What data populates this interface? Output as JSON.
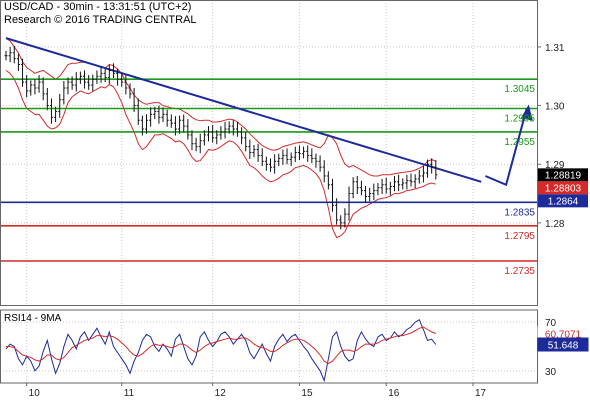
{
  "header": {
    "title": "USD/CAD - 30min - 13:31:51 (UTC+2)",
    "source": "Research © 2016 TRADING CENTRAL"
  },
  "chart_data": [
    {
      "type": "candlestick",
      "title": "USD/CAD - 30min - 13:31:51 (UTC+2)",
      "ylim": [
        1.266,
        1.318
      ],
      "y_ticks": [
        {
          "value": 1.31,
          "label": "1.31"
        },
        {
          "value": 1.3,
          "label": "1.30"
        },
        {
          "value": 1.29,
          "label": "1.29"
        },
        {
          "value": 1.28,
          "label": "1.28"
        }
      ],
      "x_ticks": [
        "10",
        "11",
        "12",
        "15",
        "16",
        "17"
      ],
      "price_labels": [
        {
          "value": 1.28819,
          "label": "1.28819",
          "color": "#ffffff",
          "bg": "#000000"
        },
        {
          "value": 1.28803,
          "label": "1.28803",
          "color": "#ffffff",
          "bg": "#d42a2a"
        },
        {
          "value": 1.2864,
          "label": "1.2864",
          "color": "#ffffff",
          "bg": "#1d2b9a"
        }
      ],
      "levels": [
        {
          "value": 1.3045,
          "label": "1.3045",
          "color": "#1a9a1a",
          "label_color": "#1a9a1a"
        },
        {
          "value": 1.2995,
          "label": "1.2995",
          "color": "#1a9a1a",
          "label_color": "#1a9a1a"
        },
        {
          "value": 1.2955,
          "label": "1.2955",
          "color": "#1a9a1a",
          "label_color": "#1a9a1a"
        },
        {
          "value": 1.2835,
          "label": "1.2835",
          "color": "#1d2b9a",
          "label_color": "#1d2b9a"
        },
        {
          "value": 1.2795,
          "label": "1.2795",
          "color": "#d42a2a",
          "label_color": "#d42a2a"
        },
        {
          "value": 1.2735,
          "label": "1.2735",
          "color": "#d42a2a",
          "label_color": "#d42a2a"
        }
      ],
      "trendline": {
        "from": {
          "bar": 0,
          "price": 1.3115
        },
        "to": {
          "bar": 115,
          "price": 1.287
        },
        "color": "#1d2b9a"
      },
      "projection": {
        "points": [
          [
            116,
            1.288
          ],
          [
            121,
            1.2865
          ],
          [
            126,
            1.2995
          ]
        ],
        "color": "#1d2b9a"
      },
      "ohlc_close": [
        1.3085,
        1.309,
        1.308,
        1.307,
        1.304,
        1.3025,
        1.3035,
        1.303,
        1.304,
        1.302,
        1.3,
        1.298,
        1.299,
        1.301,
        1.303,
        1.304,
        1.3035,
        1.3045,
        1.305,
        1.304,
        1.3035,
        1.3045,
        1.305,
        1.3055,
        1.3048,
        1.306,
        1.3055,
        1.3045,
        1.304,
        1.303,
        1.302,
        1.3,
        1.2975,
        1.296,
        1.2975,
        1.2985,
        1.299,
        1.298,
        1.2985,
        1.2975,
        1.297,
        1.296,
        1.2975,
        1.2965,
        1.295,
        1.2935,
        1.293,
        1.294,
        1.295,
        1.2955,
        1.2945,
        1.295,
        1.2955,
        1.296,
        1.2965,
        1.296,
        1.2955,
        1.2945,
        1.293,
        1.292,
        1.2925,
        1.2915,
        1.2905,
        1.29,
        1.2895,
        1.2905,
        1.291,
        1.2915,
        1.2908,
        1.2912,
        1.292,
        1.2918,
        1.2922,
        1.2915,
        1.291,
        1.2905,
        1.2895,
        1.288,
        1.2865,
        1.283,
        1.2805,
        1.28,
        1.2815,
        1.285,
        1.287,
        1.286,
        1.2855,
        1.2845,
        1.285,
        1.2855,
        1.286,
        1.2865,
        1.2858,
        1.2862,
        1.287,
        1.2865,
        1.2868,
        1.2872,
        1.287,
        1.2875,
        1.288,
        1.2885,
        1.29,
        1.2895,
        1.28819
      ],
      "band_upper": [
        1.3115,
        1.311,
        1.31,
        1.309,
        1.3075,
        1.3065,
        1.306,
        1.3055,
        1.3058,
        1.306,
        1.3055,
        1.305,
        1.3045,
        1.305,
        1.306,
        1.307,
        1.3072,
        1.3072,
        1.3074,
        1.3074,
        1.3072,
        1.307,
        1.3068,
        1.3066,
        1.3064,
        1.307,
        1.3068,
        1.3062,
        1.3055,
        1.304,
        1.303,
        1.3018,
        1.301,
        1.3005,
        1.3002,
        1.3004,
        1.3005,
        1.3005,
        1.3,
        1.2998,
        1.2996,
        1.2995,
        1.2994,
        1.299,
        1.2986,
        1.298,
        1.2976,
        1.2974,
        1.2975,
        1.2975,
        1.2972,
        1.2972,
        1.2973,
        1.2975,
        1.2977,
        1.2976,
        1.2972,
        1.2966,
        1.296,
        1.2952,
        1.2945,
        1.2938,
        1.2932,
        1.2928,
        1.2925,
        1.2924,
        1.2926,
        1.293,
        1.2932,
        1.2934,
        1.2936,
        1.2937,
        1.2938,
        1.2936,
        1.2933,
        1.293,
        1.2928,
        1.2935,
        1.295,
        1.2945,
        1.2935,
        1.2915,
        1.29,
        1.2895,
        1.2898,
        1.2894,
        1.289,
        1.2886,
        1.2882,
        1.288,
        1.288,
        1.2882,
        1.2882,
        1.2882,
        1.2884,
        1.2885,
        1.2886,
        1.2887,
        1.2888,
        1.289,
        1.2893,
        1.2897,
        1.2905,
        1.2908,
        1.2905
      ],
      "band_lower": [
        1.306,
        1.3055,
        1.3045,
        1.303,
        1.301,
        1.2995,
        1.299,
        1.2985,
        1.2985,
        1.2975,
        1.2965,
        1.296,
        1.2962,
        1.2968,
        1.2985,
        1.3005,
        1.3015,
        1.302,
        1.3025,
        1.3022,
        1.302,
        1.3024,
        1.3028,
        1.3032,
        1.303,
        1.3036,
        1.3032,
        1.302,
        1.3005,
        1.2985,
        1.297,
        1.2955,
        1.2935,
        1.2925,
        1.293,
        1.294,
        1.295,
        1.295,
        1.2952,
        1.2948,
        1.2944,
        1.2938,
        1.294,
        1.2935,
        1.2925,
        1.2912,
        1.2905,
        1.2906,
        1.2915,
        1.2925,
        1.2924,
        1.2926,
        1.293,
        1.2935,
        1.294,
        1.2938,
        1.2932,
        1.2922,
        1.291,
        1.2898,
        1.2894,
        1.2888,
        1.288,
        1.2874,
        1.287,
        1.2872,
        1.2876,
        1.2882,
        1.2884,
        1.2888,
        1.2894,
        1.2896,
        1.2898,
        1.2895,
        1.289,
        1.2884,
        1.2874,
        1.2855,
        1.2825,
        1.279,
        1.2775,
        1.2778,
        1.2785,
        1.28,
        1.2815,
        1.282,
        1.2825,
        1.2828,
        1.2832,
        1.2836,
        1.284,
        1.2842,
        1.2843,
        1.2846,
        1.285,
        1.285,
        1.2852,
        1.2855,
        1.2856,
        1.2858,
        1.286,
        1.2862,
        1.2866,
        1.2868,
        1.2866
      ]
    },
    {
      "type": "line",
      "title": "RSI14 - 9MA",
      "ylim": [
        20,
        80
      ],
      "y_ticks": [
        {
          "value": 70,
          "label": "70"
        },
        {
          "value": 30,
          "label": "30"
        }
      ],
      "value_labels": [
        {
          "value": 60.7071,
          "label": "60.7071",
          "color": "#d42a2a",
          "bg": "#ffffff"
        },
        {
          "value": 51.648,
          "label": "51.648",
          "color": "#ffffff",
          "bg": "#1d2b9a"
        }
      ],
      "series": [
        {
          "color": "#1d2b9a",
          "values": [
            48,
            52,
            50,
            40,
            35,
            42,
            38,
            30,
            34,
            46,
            55,
            40,
            28,
            36,
            50,
            60,
            55,
            48,
            58,
            62,
            55,
            60,
            65,
            58,
            52,
            62,
            50,
            45,
            40,
            35,
            28,
            38,
            45,
            55,
            60,
            58,
            50,
            46,
            52,
            48,
            42,
            56,
            60,
            50,
            40,
            35,
            42,
            58,
            62,
            55,
            50,
            54,
            60,
            62,
            58,
            52,
            56,
            60,
            55,
            45,
            40,
            46,
            52,
            44,
            38,
            50,
            56,
            60,
            54,
            58,
            60,
            55,
            50,
            46,
            40,
            35,
            30,
            22,
            40,
            58,
            62,
            50,
            42,
            38,
            40,
            55,
            62,
            56,
            52,
            50,
            58,
            60,
            55,
            57,
            62,
            58,
            60,
            64,
            66,
            70,
            72,
            64,
            55,
            56,
            51.648
          ]
        },
        {
          "color": "#d42a2a",
          "values": [
            50,
            50,
            49,
            46,
            43,
            42,
            41,
            39,
            38,
            40,
            43,
            43,
            40,
            39,
            41,
            45,
            49,
            51,
            53,
            55,
            56,
            57,
            59,
            59,
            58,
            59,
            58,
            56,
            53,
            50,
            46,
            43,
            42,
            44,
            47,
            50,
            52,
            51,
            51,
            50,
            49,
            50,
            52,
            52,
            50,
            47,
            45,
            47,
            50,
            52,
            53,
            54,
            55,
            56,
            57,
            56,
            56,
            57,
            57,
            55,
            52,
            50,
            49,
            48,
            46,
            46,
            48,
            51,
            53,
            55,
            56,
            56,
            55,
            53,
            50,
            47,
            43,
            38,
            36,
            38,
            42,
            46,
            47,
            47,
            46,
            47,
            50,
            52,
            52,
            52,
            53,
            55,
            56,
            57,
            58,
            59,
            59,
            60,
            61,
            63,
            65,
            66,
            64,
            62,
            60.7071
          ]
        }
      ]
    }
  ]
}
